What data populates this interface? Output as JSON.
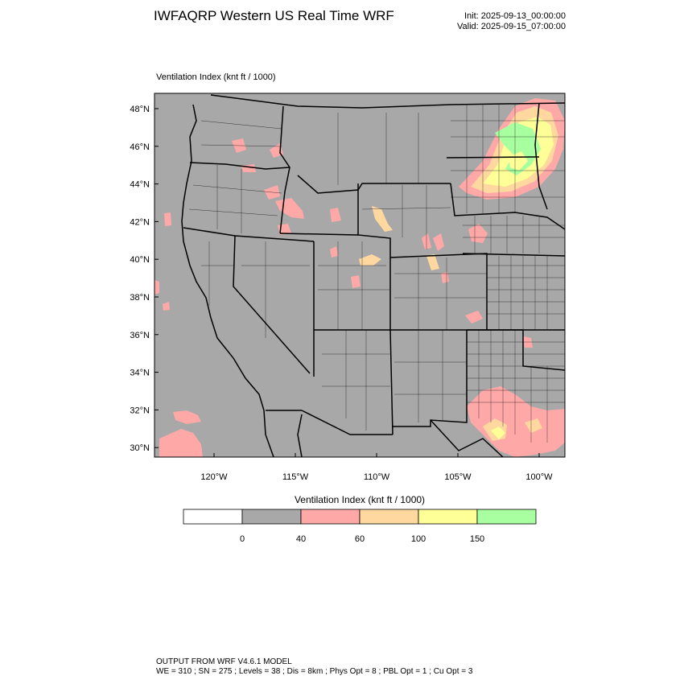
{
  "header": {
    "title": "IWFAQRP Western US Real Time WRF",
    "init": "Init: 2025-09-13_00:00:00",
    "valid": "Valid: 2025-09-15_07:00:00"
  },
  "field_label": "Ventilation Index   (knt ft / 1000)",
  "map": {
    "lat_ticks": [
      "48°N",
      "46°N",
      "44°N",
      "42°N",
      "40°N",
      "38°N",
      "36°N",
      "34°N",
      "32°N",
      "30°N"
    ],
    "lon_ticks": [
      "120°W",
      "115°W",
      "110°W",
      "105°W",
      "100°W"
    ],
    "background_color": "#a8a8a8",
    "boundary_color": "#000000"
  },
  "colorbar": {
    "title": "Ventilation Index  (knt ft / 1000)",
    "bins": [
      {
        "color": "#ffffff"
      },
      {
        "color": "#a8a8a8"
      },
      {
        "color": "#ffa8a8"
      },
      {
        "color": "#ffd8a0"
      },
      {
        "color": "#ffff98"
      },
      {
        "color": "#a8ffa0"
      }
    ],
    "ticks": [
      "0",
      "40",
      "60",
      "100",
      "150"
    ]
  },
  "footer": {
    "line1": "OUTPUT FROM WRF V4.6.1 MODEL",
    "line2": "WE = 310 ; SN = 275 ; Levels = 38 ; Dis = 8km ; Phys Opt = 8 ; PBL Opt = 1 ; Cu Opt = 3"
  }
}
